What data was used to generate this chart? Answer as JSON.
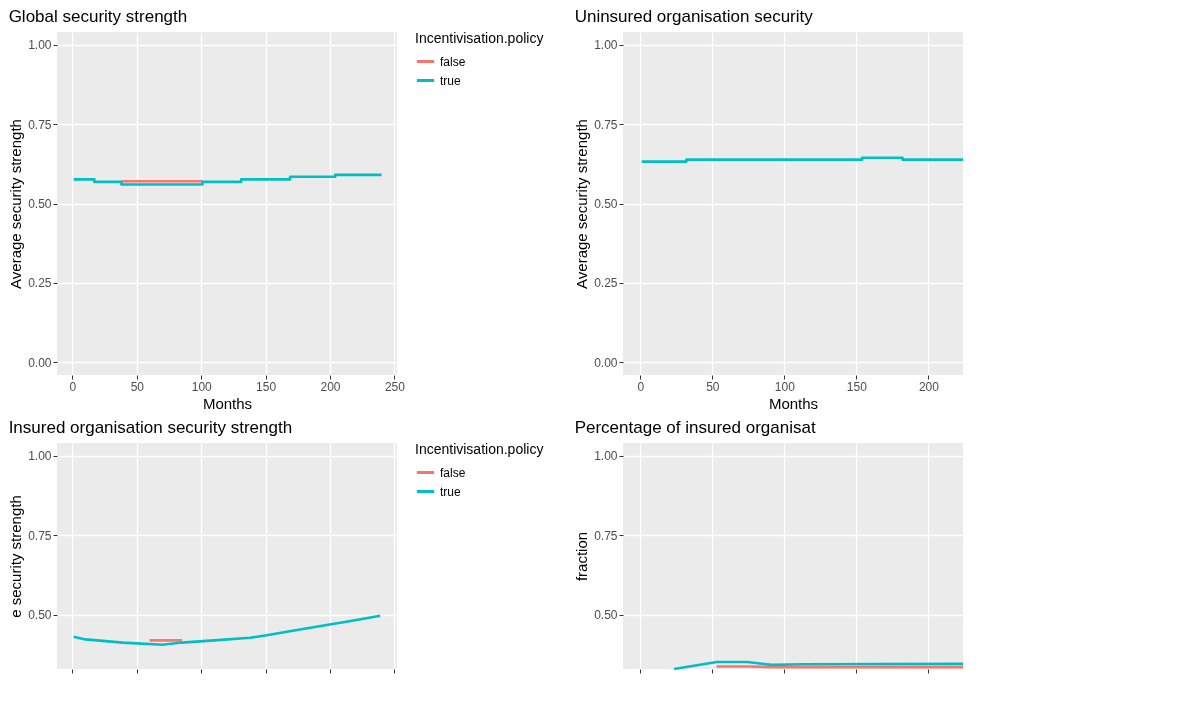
{
  "chart_data": [
    {
      "type": "step",
      "title": "Global security strength",
      "xlabel": "Months",
      "ylabel": "Average security strength",
      "legend_title": "Incentivisation.policy",
      "legend": "right",
      "grid": true,
      "xlim": [
        -12,
        252
      ],
      "xticks": [
        0,
        50,
        100,
        150,
        200,
        250
      ],
      "ylim": [
        -0.04,
        1.04
      ],
      "yticks": [
        {
          "value": 0,
          "label": "0.00"
        },
        {
          "value": 0.25,
          "label": "0.25"
        },
        {
          "value": 0.5,
          "label": "0.50"
        },
        {
          "value": 0.75,
          "label": "0.75"
        },
        {
          "value": 1,
          "label": "1.00"
        }
      ],
      "series": [
        {
          "name": "false",
          "color": "#f8766d",
          "x": [
            38,
            101
          ],
          "values": [
            0.57,
            0.57
          ]
        },
        {
          "name": "true",
          "color": "#00bfc4",
          "x": [
            1,
            17,
            38,
            101,
            131,
            169,
            204,
            240
          ],
          "values": [
            0.576,
            0.568,
            0.56,
            0.568,
            0.576,
            0.584,
            0.59,
            0.59
          ]
        }
      ]
    },
    {
      "type": "step",
      "title": "Uninsured organisation security",
      "xlabel": "Months",
      "ylabel": "Average security strength",
      "grid": true,
      "xlim": [
        -12,
        224
      ],
      "xticks": [
        0,
        50,
        100,
        150,
        200
      ],
      "ylim": [
        -0.04,
        1.04
      ],
      "yticks": [
        {
          "value": 0,
          "label": "0.00"
        },
        {
          "value": 0.25,
          "label": "0.25"
        },
        {
          "value": 0.5,
          "label": "0.50"
        },
        {
          "value": 0.75,
          "label": "0.75"
        },
        {
          "value": 1,
          "label": "1.00"
        }
      ],
      "series": [
        {
          "color": "#00bfc4",
          "x": [
            1,
            32,
            154,
            182,
            224
          ],
          "values": [
            0.632,
            0.638,
            0.644,
            0.638,
            0.638
          ]
        }
      ]
    },
    {
      "type": "line",
      "title": "Insured organisation security strength",
      "ylabel": "e security strength",
      "legend_title": "Incentivisation.policy",
      "legend": "right",
      "grid": true,
      "tick_labels": "y",
      "xlim": [
        -12,
        252
      ],
      "xticks": [
        0,
        50,
        100,
        150,
        200,
        250
      ],
      "ylim": [
        0.33,
        1.04
      ],
      "yticks": [
        {
          "value": 0.5,
          "label": "0.50"
        },
        {
          "value": 0.75,
          "label": "0.75"
        },
        {
          "value": 1,
          "label": "1.00"
        }
      ],
      "series": [
        {
          "name": "false",
          "color": "#f8766d",
          "x": [
            60,
            85
          ],
          "values": [
            0.42,
            0.42
          ]
        },
        {
          "name": "true",
          "color": "#00bfc4",
          "x": [
            1,
            10,
            39,
            70,
            85,
            110,
            138,
            152,
            171,
            194,
            215,
            239
          ],
          "values": [
            0.431,
            0.423,
            0.413,
            0.406,
            0.413,
            0.42,
            0.428,
            0.437,
            0.45,
            0.466,
            0.48,
            0.497
          ]
        }
      ]
    },
    {
      "type": "line",
      "title": "Percentage of insured organisat",
      "ylabel": "fraction",
      "grid": true,
      "tick_labels": "y",
      "xlim": [
        -12,
        224
      ],
      "xticks": [
        0,
        50,
        100,
        150,
        200
      ],
      "ylim": [
        0.33,
        1.04
      ],
      "yticks": [
        {
          "value": 0.5,
          "label": "0.50"
        },
        {
          "value": 0.75,
          "label": "0.75"
        },
        {
          "value": 1,
          "label": "1.00"
        }
      ],
      "series": [
        {
          "color": "#f8766d",
          "x": [
            53,
            74.5,
            91,
            113,
            224
          ],
          "values": [
            0.338,
            0.338,
            0.336,
            0.336,
            0.336
          ]
        },
        {
          "color": "#00bfc4",
          "x": [
            23.5,
            53,
            74.5,
            91,
            113,
            224
          ],
          "values": [
            0.33,
            0.352,
            0.352,
            0.343,
            0.345,
            0.346
          ]
        }
      ]
    }
  ]
}
